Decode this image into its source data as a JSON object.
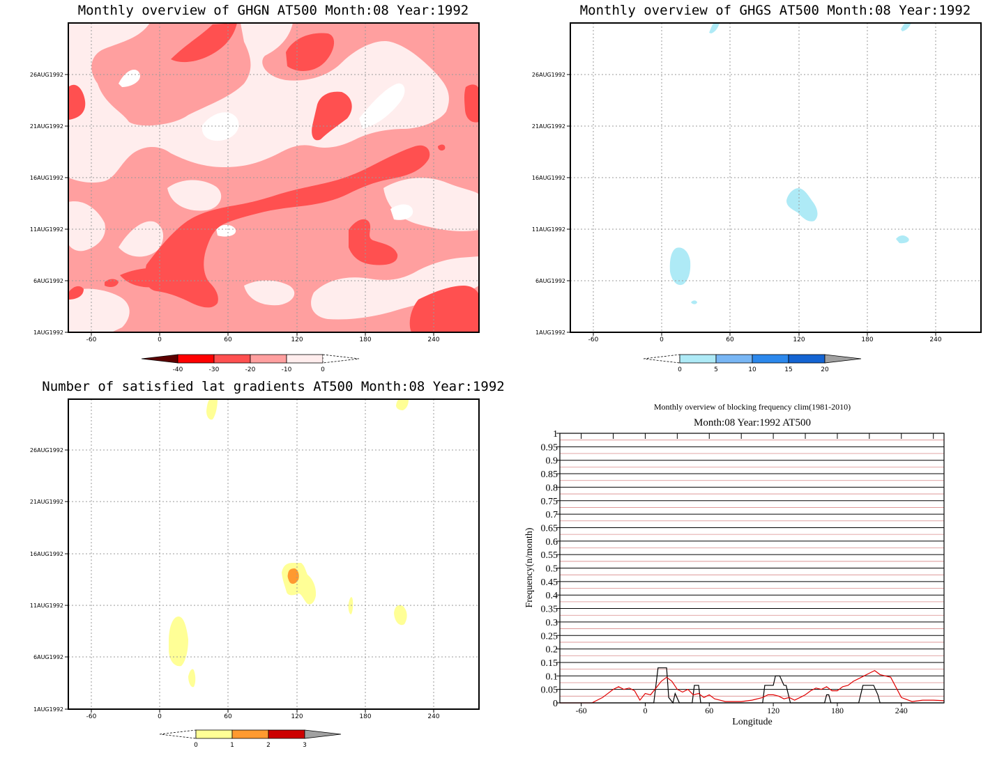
{
  "colors": {
    "red_scale": [
      "#5c0000",
      "#ff0000",
      "#ff5050",
      "#ff9f9f",
      "#ffeded"
    ],
    "blue_scale": [
      "#aeeaf6",
      "#78b6f4",
      "#2c88ec",
      "#1464d2",
      "#a0a0a0"
    ],
    "yellow_scale": [
      "#ffff96",
      "#ff9a30",
      "#cc0000",
      "#a0a0a0"
    ],
    "line_black": "#000000",
    "line_red": "#e00000",
    "grid_red": "#d88888"
  },
  "panels": [
    {
      "id": "ghgn",
      "title": "Monthly overview of GHGN AT500 Month:08 Year:1992",
      "x_ticks": [
        "-60",
        "0",
        "60",
        "120",
        "180",
        "240"
      ],
      "y_ticks": [
        "1AUG1992",
        "6AUG1992",
        "11AUG1992",
        "16AUG1992",
        "21AUG1992",
        "26AUG1992"
      ],
      "colorbar_labels": [
        "-40",
        "-30",
        "-20",
        "-10",
        "0"
      ]
    },
    {
      "id": "ghgs",
      "title": "Monthly overview of GHGS AT500 Month:08 Year:1992",
      "x_ticks": [
        "-60",
        "0",
        "60",
        "120",
        "180",
        "240"
      ],
      "y_ticks": [
        "1AUG1992",
        "6AUG1992",
        "11AUG1992",
        "16AUG1992",
        "21AUG1992",
        "26AUG1992"
      ],
      "colorbar_labels": [
        "0",
        "5",
        "10",
        "15",
        "20"
      ]
    },
    {
      "id": "gradients",
      "title": "Number of satisfied lat gradients AT500 Month:08 Year:1992",
      "x_ticks": [
        "-60",
        "0",
        "60",
        "120",
        "180",
        "240"
      ],
      "y_ticks": [
        "1AUG1992",
        "6AUG1992",
        "11AUG1992",
        "16AUG1992",
        "21AUG1992",
        "26AUG1992"
      ],
      "colorbar_labels": [
        "0",
        "1",
        "2",
        "3"
      ]
    }
  ],
  "chart_data": {
    "type": "line",
    "title": "Monthly overview of blocking frequency clim(1981-2010)",
    "subtitle": "Month:08 Year:1992  AT500",
    "xlabel": "Longitude",
    "ylabel": "Frequency(n/month)",
    "xlim": [
      -80,
      280
    ],
    "ylim": [
      0,
      1
    ],
    "x_ticks": [
      "-60",
      "0",
      "60",
      "120",
      "180",
      "240"
    ],
    "y_ticks": [
      "0",
      "0.05",
      "0.1",
      "0.15",
      "0.2",
      "0.25",
      "0.3",
      "0.35",
      "0.4",
      "0.45",
      "0.5",
      "0.55",
      "0.6",
      "0.65",
      "0.7",
      "0.75",
      "0.8",
      "0.85",
      "0.9",
      "0.95",
      "1"
    ],
    "grid": true,
    "series": [
      {
        "color": "#000000",
        "x": [
          -80,
          8,
          12,
          20,
          22,
          26,
          28,
          32,
          34,
          38,
          40,
          44,
          46,
          50,
          52,
          110,
          112,
          116,
          120,
          122,
          126,
          130,
          132,
          136,
          138,
          168,
          170,
          172,
          174,
          200,
          204,
          210,
          214,
          218,
          220,
          280
        ],
        "y": [
          0,
          0,
          0.13,
          0.13,
          0.02,
          0.0,
          0.035,
          0.0,
          0.0,
          0.0,
          0.0,
          0.0,
          0.065,
          0.065,
          0.0,
          0.0,
          0.065,
          0.065,
          0.065,
          0.1,
          0.1,
          0.065,
          0.065,
          0.0,
          0.0,
          0.0,
          0.03,
          0.03,
          0.0,
          0.0,
          0.065,
          0.065,
          0.065,
          0.03,
          0.0,
          0.0
        ]
      },
      {
        "color": "#e00000",
        "x": [
          -80,
          -50,
          -40,
          -30,
          -25,
          -20,
          -15,
          -10,
          -5,
          0,
          5,
          10,
          15,
          20,
          25,
          30,
          35,
          40,
          45,
          50,
          55,
          60,
          65,
          70,
          75,
          80,
          90,
          100,
          110,
          115,
          120,
          125,
          130,
          135,
          140,
          145,
          150,
          155,
          160,
          165,
          170,
          175,
          180,
          185,
          190,
          195,
          200,
          205,
          210,
          215,
          220,
          225,
          230,
          240,
          250,
          260,
          270,
          280
        ],
        "y": [
          0,
          0,
          0.02,
          0.05,
          0.06,
          0.05,
          0.055,
          0.045,
          0.01,
          0.035,
          0.03,
          0.055,
          0.08,
          0.095,
          0.08,
          0.05,
          0.04,
          0.05,
          0.03,
          0.035,
          0.02,
          0.03,
          0.015,
          0.01,
          0.005,
          0.005,
          0.005,
          0.01,
          0.02,
          0.03,
          0.03,
          0.025,
          0.015,
          0.02,
          0.01,
          0.02,
          0.03,
          0.045,
          0.055,
          0.05,
          0.06,
          0.045,
          0.045,
          0.06,
          0.065,
          0.08,
          0.09,
          0.1,
          0.11,
          0.12,
          0.105,
          0.1,
          0.095,
          0.02,
          0.005,
          0.01,
          0.01,
          0.008
        ]
      }
    ]
  }
}
